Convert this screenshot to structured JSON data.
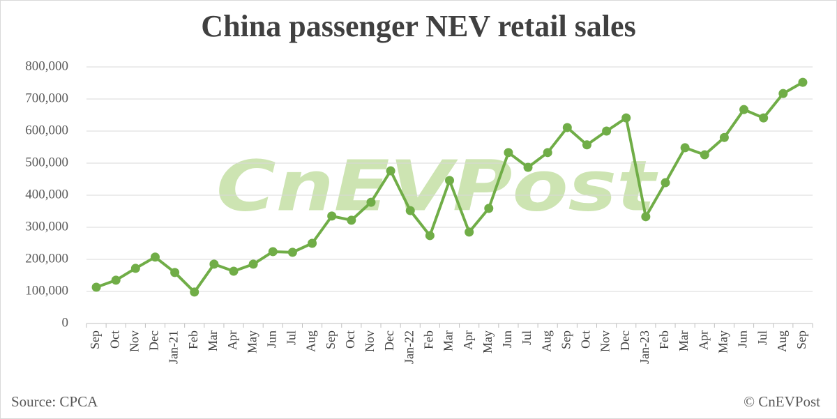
{
  "chart_data": {
    "type": "line",
    "title": "China passenger NEV retail sales",
    "categories": [
      "Sep",
      "Oct",
      "Nov",
      "Dec",
      "Jan-21",
      "Feb",
      "Mar",
      "Apr",
      "May",
      "Jun",
      "Jul",
      "Aug",
      "Sep",
      "Oct",
      "Nov",
      "Dec",
      "Jan-22",
      "Feb",
      "Mar",
      "Apr",
      "May",
      "Jun",
      "Jul",
      "Aug",
      "Sep",
      "Oct",
      "Nov",
      "Dec",
      "Jan-23",
      "Feb",
      "Mar",
      "Apr",
      "May",
      "Jun",
      "Jul",
      "Aug",
      "Sep"
    ],
    "series": [
      {
        "name": "NEV retail sales",
        "color": "#70ad47",
        "values": [
          113000,
          135000,
          172000,
          207000,
          159000,
          98000,
          185000,
          163000,
          185000,
          224000,
          222000,
          250000,
          335000,
          322000,
          378000,
          476000,
          352000,
          274000,
          446000,
          285000,
          359000,
          533000,
          487000,
          533000,
          611000,
          557000,
          600000,
          641000,
          333000,
          439000,
          548000,
          526000,
          580000,
          667000,
          641000,
          717000,
          752000
        ]
      }
    ],
    "ylim": [
      0,
      800000
    ],
    "yticks": [
      0,
      {
        "value": 100000,
        "label": "100,000"
      },
      {
        "value": 200000,
        "label": "200,000"
      },
      {
        "value": 300000,
        "label": "300,000"
      },
      {
        "value": 400000,
        "label": "400,000"
      },
      {
        "value": 500000,
        "label": "500,000"
      },
      {
        "value": 600000,
        "label": "600,000"
      },
      {
        "value": 700000,
        "label": "700,000"
      },
      {
        "value": 800000,
        "label": "800,000"
      }
    ],
    "grid": true,
    "watermark": "CnEVPost",
    "source": "Source: CPCA",
    "copyright": "© CnEVPost"
  }
}
